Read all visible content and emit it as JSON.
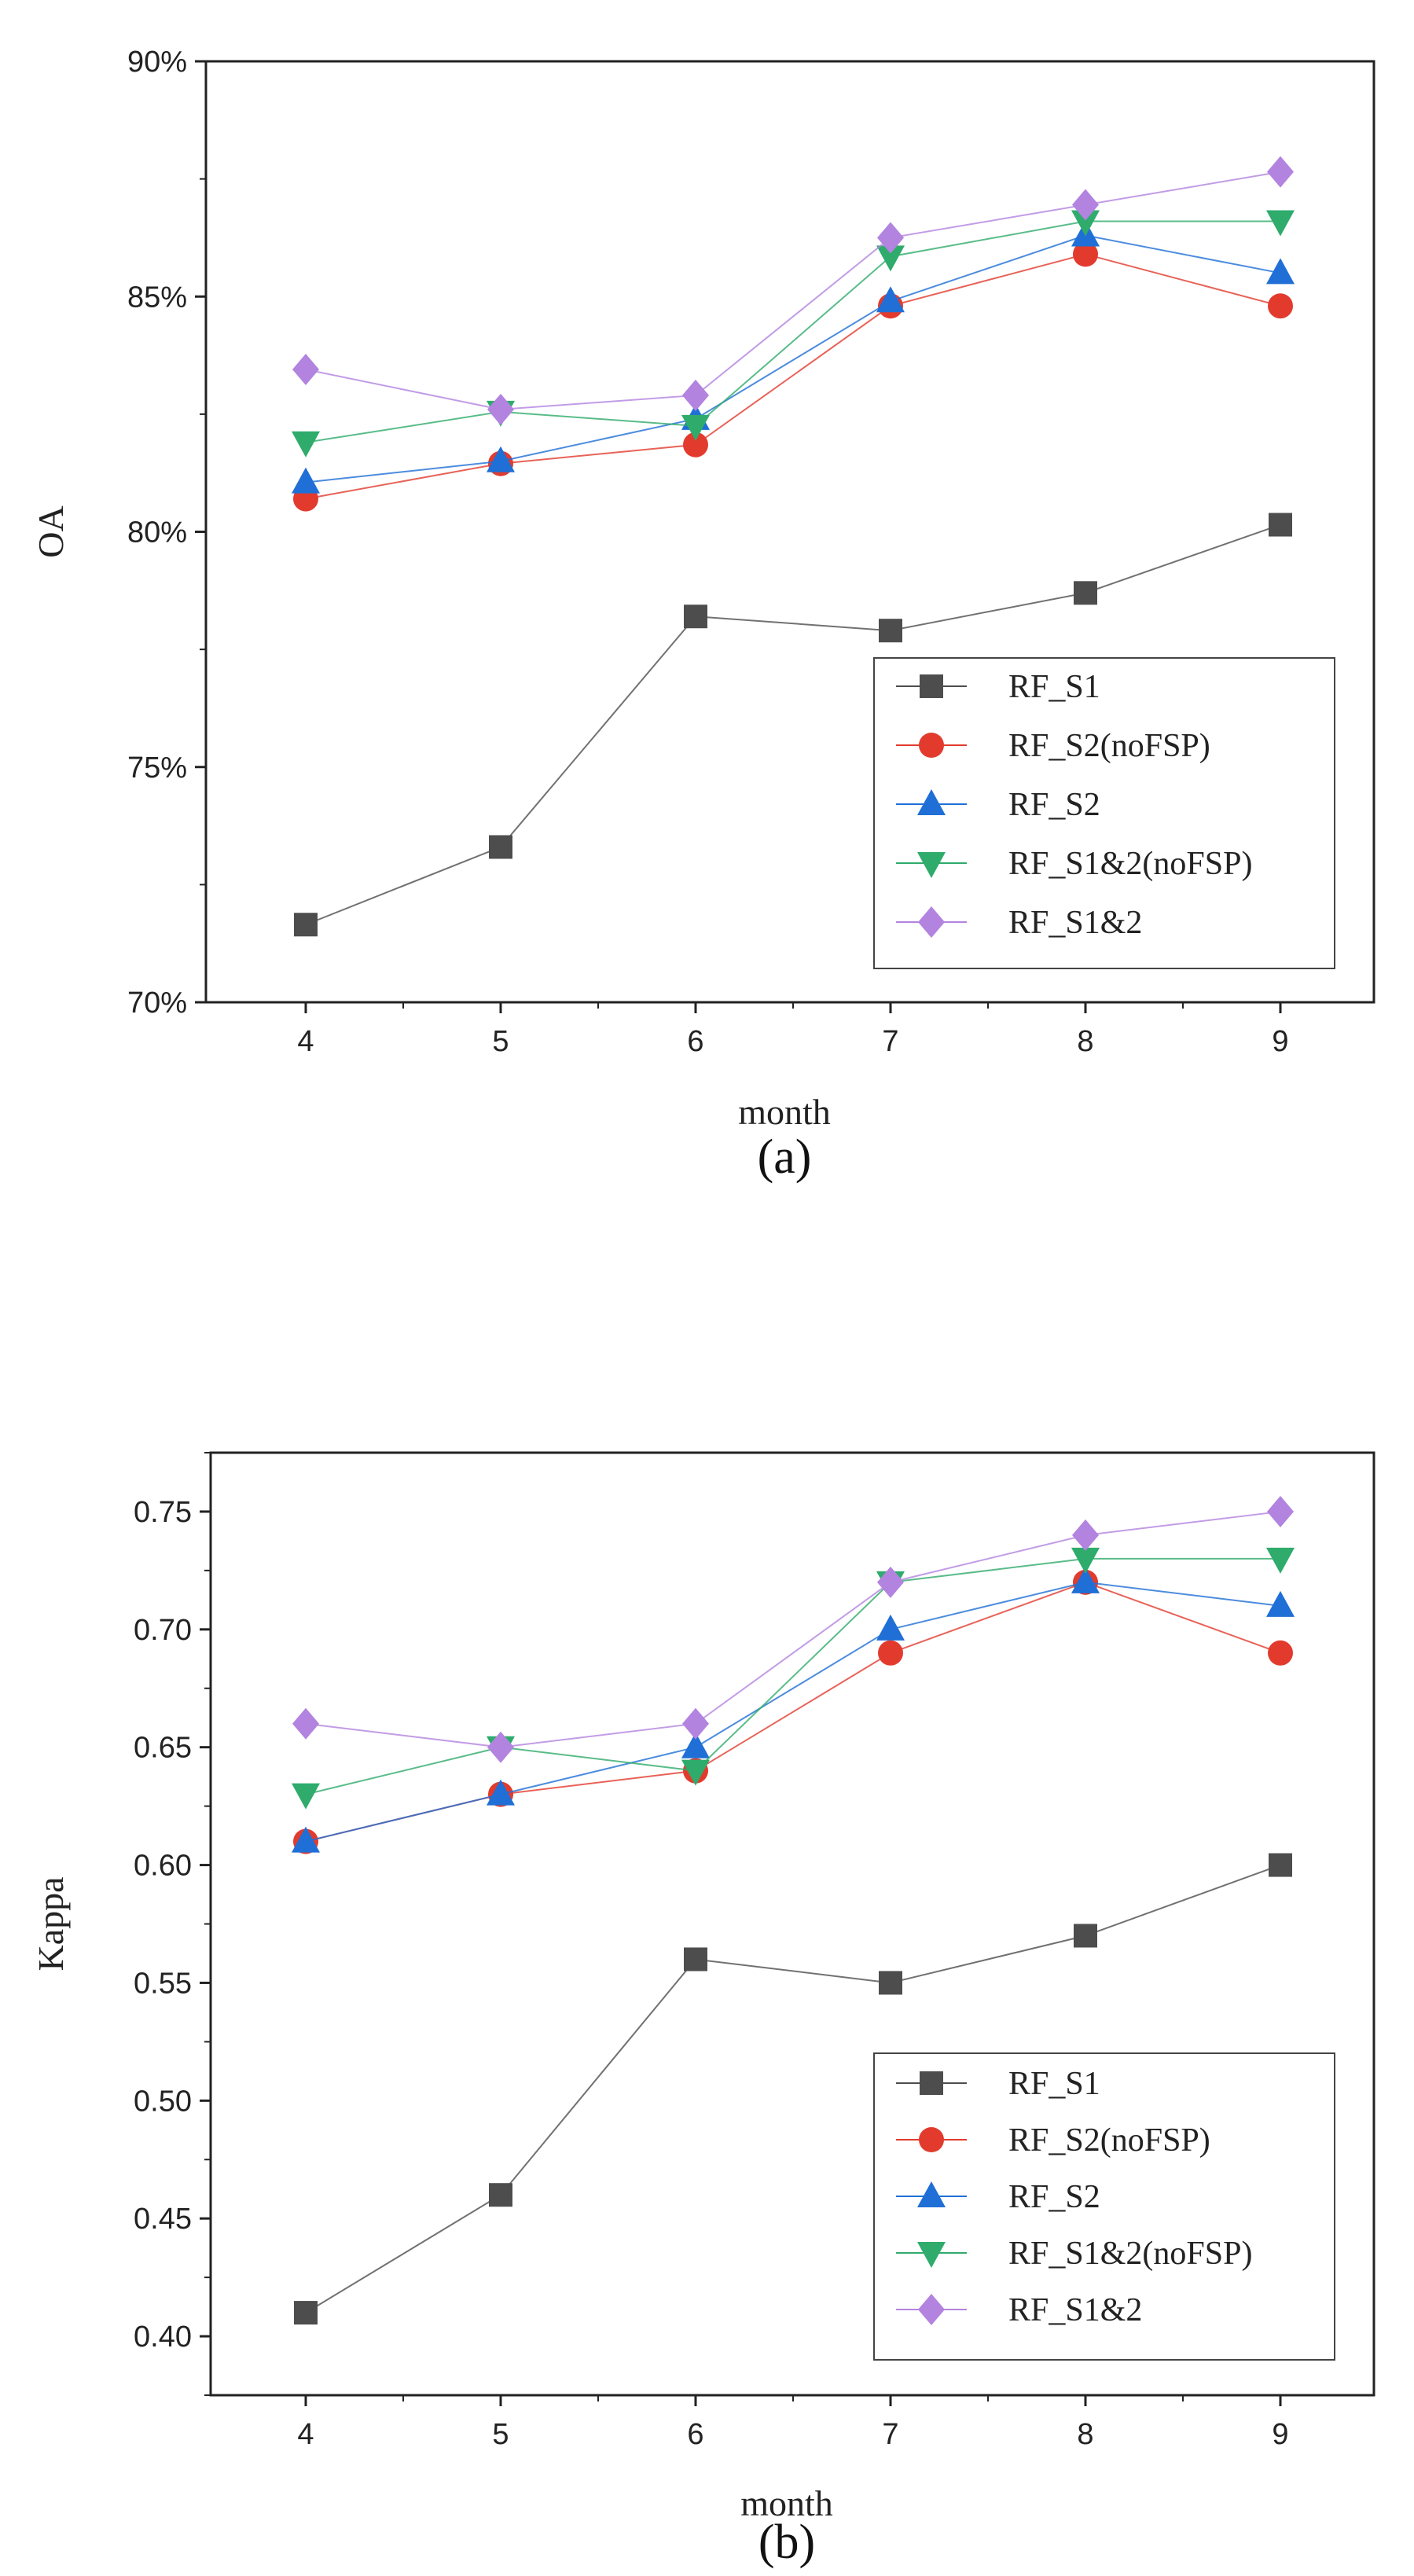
{
  "chart_data": [
    {
      "type": "line",
      "caption": "(a)",
      "xlabel": "month",
      "ylabel": "OA",
      "categories": [
        4,
        5,
        6,
        7,
        8,
        9
      ],
      "ylim": [
        0.7,
        0.9
      ],
      "yticks": [
        0.7,
        0.75,
        0.8,
        0.85,
        0.9
      ],
      "ytick_labels": [
        "70%",
        "75%",
        "80%",
        "85%",
        "90%"
      ],
      "legend_position": "bottom-right",
      "series": [
        {
          "name": "RF_S1",
          "marker": "square",
          "color": "#4d4d4d",
          "values": [
            0.7165,
            0.733,
            0.782,
            0.779,
            0.787,
            0.8015
          ]
        },
        {
          "name": "RF_S2(noFSP)",
          "marker": "circle",
          "color": "#e23b2e",
          "values": [
            0.807,
            0.8145,
            0.8185,
            0.848,
            0.859,
            0.848
          ]
        },
        {
          "name": "RF_S2",
          "marker": "triangle-up",
          "color": "#1f6fd6",
          "values": [
            0.8105,
            0.815,
            0.824,
            0.849,
            0.863,
            0.855
          ]
        },
        {
          "name": "RF_S1&2(noFSP)",
          "marker": "triangle-down",
          "color": "#2fab6c",
          "values": [
            0.819,
            0.8255,
            0.8225,
            0.8585,
            0.866,
            0.866
          ]
        },
        {
          "name": "RF_S1&2",
          "marker": "diamond",
          "color": "#b383e0",
          "values": [
            0.8345,
            0.826,
            0.829,
            0.8625,
            0.8695,
            0.8765
          ]
        }
      ]
    },
    {
      "type": "line",
      "caption": "(b)",
      "xlabel": "month",
      "ylabel": "Kappa",
      "categories": [
        4,
        5,
        6,
        7,
        8,
        9
      ],
      "ylim": [
        0.375,
        0.775
      ],
      "yticks": [
        0.4,
        0.45,
        0.5,
        0.55,
        0.6,
        0.65,
        0.7,
        0.75
      ],
      "ytick_labels": [
        "0.40",
        "0.45",
        "0.50",
        "0.55",
        "0.60",
        "0.65",
        "0.70",
        "0.75"
      ],
      "legend_position": "bottom-right",
      "series": [
        {
          "name": "RF_S1",
          "marker": "square",
          "color": "#4d4d4d",
          "values": [
            0.41,
            0.46,
            0.56,
            0.55,
            0.57,
            0.6
          ]
        },
        {
          "name": "RF_S2(noFSP)",
          "marker": "circle",
          "color": "#e23b2e",
          "values": [
            0.61,
            0.63,
            0.64,
            0.69,
            0.72,
            0.69
          ]
        },
        {
          "name": "RF_S2",
          "marker": "triangle-up",
          "color": "#1f6fd6",
          "values": [
            0.61,
            0.63,
            0.65,
            0.7,
            0.72,
            0.71
          ]
        },
        {
          "name": "RF_S1&2(noFSP)",
          "marker": "triangle-down",
          "color": "#2fab6c",
          "values": [
            0.63,
            0.65,
            0.64,
            0.72,
            0.73,
            0.73
          ]
        },
        {
          "name": "RF_S1&2",
          "marker": "diamond",
          "color": "#b383e0",
          "values": [
            0.66,
            0.65,
            0.66,
            0.72,
            0.74,
            0.75
          ]
        }
      ]
    }
  ]
}
